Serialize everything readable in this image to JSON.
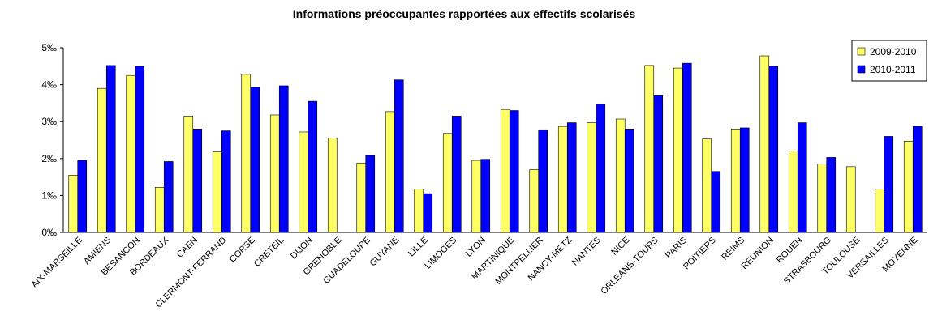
{
  "chart_data": {
    "type": "bar",
    "title": "Informations préoccupantes rapportées aux effectifs scolarisés",
    "categories": [
      "AIX-MARSEILLE",
      "AMIENS",
      "BESANCON",
      "BORDEAUX",
      "CAEN",
      "CLERMONT-FERRAND",
      "CORSE",
      "CRETEIL",
      "DIJON",
      "GRENOBLE",
      "GUADELOUPE",
      "GUYANE",
      "LILLE",
      "LIMOGES",
      "LYON",
      "MARTINIQUE",
      "MONTPELLIER",
      "NANCY-METZ",
      "NANTES",
      "NICE",
      "ORLEANS-TOURS",
      "PARIS",
      "POITIERS",
      "REIMS",
      "REUNION",
      "ROUEN",
      "STRASBOURG",
      "TOULOUSE",
      "VERSAILLES",
      "MOYENNE"
    ],
    "series": [
      {
        "name": "2009-2010",
        "color": "#ffff66",
        "values": [
          1.55,
          3.9,
          4.25,
          1.22,
          3.15,
          2.18,
          4.28,
          3.18,
          2.72,
          2.55,
          1.88,
          3.27,
          1.17,
          2.68,
          1.95,
          3.33,
          1.7,
          2.87,
          2.97,
          3.07,
          4.52,
          4.45,
          2.53,
          2.8,
          4.78,
          2.2,
          1.85,
          1.78,
          1.17,
          2.47
        ]
      },
      {
        "name": "2010-2011",
        "color": "#0000ff",
        "values": [
          1.95,
          4.52,
          4.5,
          1.92,
          2.8,
          2.75,
          3.93,
          3.97,
          3.55,
          null,
          2.08,
          4.13,
          1.05,
          3.15,
          1.98,
          3.3,
          2.78,
          2.97,
          3.48,
          2.8,
          3.72,
          4.58,
          1.65,
          2.83,
          4.5,
          2.97,
          2.03,
          null,
          2.6,
          2.87
        ]
      }
    ],
    "ylim": [
      0,
      5
    ],
    "yticks": [
      {
        "value": 0,
        "label": "0‰"
      },
      {
        "value": 1,
        "label": "1‰"
      },
      {
        "value": 2,
        "label": "2‰"
      },
      {
        "value": 3,
        "label": "3‰"
      },
      {
        "value": 4,
        "label": "4‰"
      },
      {
        "value": 5,
        "label": "5‰"
      }
    ],
    "legend": "top-right"
  }
}
